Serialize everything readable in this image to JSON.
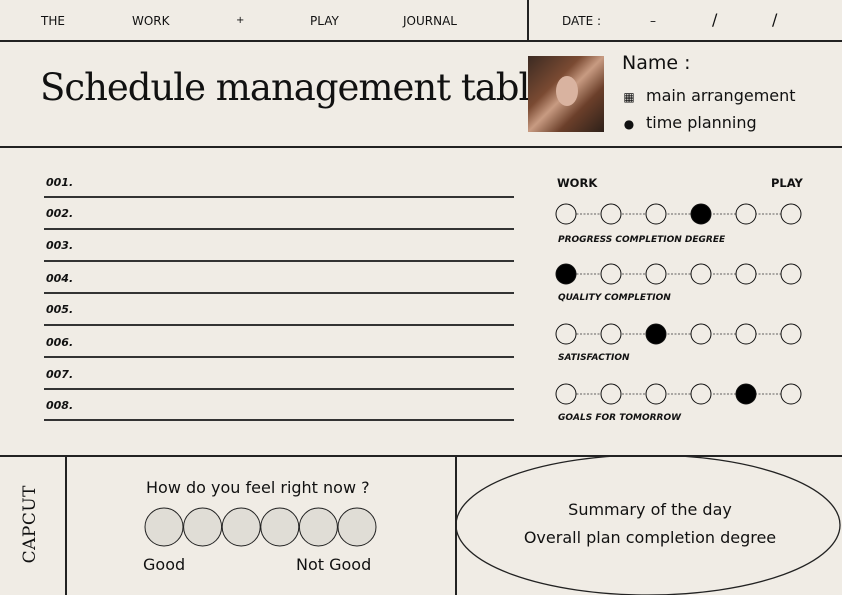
{
  "header": {
    "items": [
      "THE",
      "WORK",
      "+",
      "PLAY",
      "JOURNAL"
    ],
    "date_label": "DATE :",
    "date_sep": [
      "–",
      "/",
      "/"
    ]
  },
  "title": "Schedule management table",
  "profile": {
    "name_label": "Name :",
    "items": [
      {
        "icon": "calendar-icon",
        "label": "main arrangement"
      },
      {
        "icon": "clock-icon",
        "label": "time planning"
      }
    ]
  },
  "list": {
    "items": [
      "001.",
      "002.",
      "003.",
      "004.",
      "005.",
      "006.",
      "007.",
      "008."
    ]
  },
  "ratings": {
    "left_label": "WORK",
    "right_label": "PLAY",
    "scale_points": 6,
    "rows": [
      {
        "label": "PROGRESS COMPLETION DEGREE",
        "selected": 4
      },
      {
        "label": "QUALITY COMPLETION",
        "selected": 1
      },
      {
        "label": "SATISFACTION",
        "selected": 3
      },
      {
        "label": "GOALS FOR TOMORROW",
        "selected": 5
      }
    ]
  },
  "feel": {
    "question": "How do you feel right now ?",
    "left": "Good",
    "right": "Not Good",
    "options": 6
  },
  "logo": "CAPCUT",
  "summary": {
    "line1": "Summary of the day",
    "line2": "Overall plan completion degree"
  },
  "colors": {
    "background": "#f0ece5",
    "ink": "#111111",
    "feel_fill": "#e0ddd6"
  }
}
